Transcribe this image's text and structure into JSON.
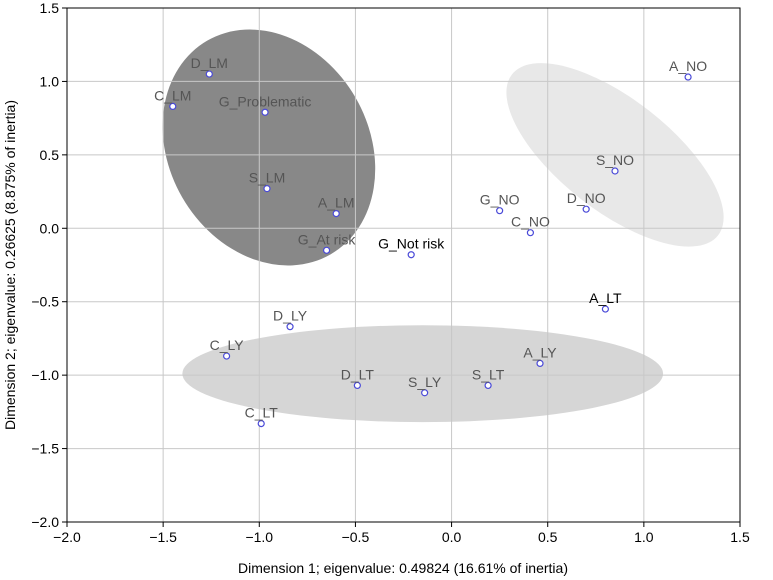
{
  "chart_data": {
    "type": "scatter",
    "xlabel": "Dimension 1; eigenvalue: 0.49824 (16.61% of inertia)",
    "ylabel": "Dimension 2; eigenvalue: 0.26625 (8.875% of inertia)",
    "xlim": [
      -2.0,
      1.5
    ],
    "ylim": [
      -2.0,
      1.5
    ],
    "x_ticks": [
      "−2.0",
      "−1.5",
      "−1.0",
      "−0.5",
      "0.0",
      "0.5",
      "1.0",
      "1.5"
    ],
    "y_ticks": [
      "1.5",
      "1.0",
      "0.5",
      "0.0",
      "−0.5",
      "−1.0",
      "−1.5",
      "−2.0"
    ],
    "x_tick_values": [
      -2.0,
      -1.5,
      -1.0,
      -0.5,
      0.0,
      0.5,
      1.0,
      1.5
    ],
    "y_tick_values": [
      1.5,
      1.0,
      0.5,
      0.0,
      -0.5,
      -1.0,
      -1.5,
      -2.0
    ],
    "grid": true,
    "colors": {
      "point": "#4a4ad8",
      "label_gray": "#555555",
      "label_dark": "#000000",
      "ellipse_dark": "#888888",
      "ellipse_mid": "#d6d6d6",
      "ellipse_light": "#e8e8e8"
    },
    "groups": [
      {
        "cx": -0.95,
        "cy": 0.55,
        "rx": 0.52,
        "ry": 0.84,
        "rotation_deg": -30,
        "fill": "#888888"
      },
      {
        "cx": 0.85,
        "cy": 0.5,
        "rx": 0.68,
        "ry": 0.38,
        "rotation_deg": 38,
        "fill": "#e8e8e8"
      },
      {
        "cx": -0.15,
        "cy": -0.99,
        "rx": 1.25,
        "ry": 0.33,
        "rotation_deg": 0,
        "fill": "#d6d6d6"
      }
    ],
    "points": [
      {
        "label": "D_LM",
        "x": -1.26,
        "y": 1.05,
        "dark": false
      },
      {
        "label": "C_LM",
        "x": -1.45,
        "y": 0.83,
        "dark": false
      },
      {
        "label": "G_Problematic",
        "x": -0.97,
        "y": 0.79,
        "dark": false
      },
      {
        "label": "S_LM",
        "x": -0.96,
        "y": 0.27,
        "dark": false
      },
      {
        "label": "A_LM",
        "x": -0.6,
        "y": 0.1,
        "dark": false
      },
      {
        "label": "G_At risk",
        "x": -0.65,
        "y": -0.15,
        "dark": false
      },
      {
        "label": "G_Not risk",
        "x": -0.21,
        "y": -0.18,
        "dark": true
      },
      {
        "label": "A_NO",
        "x": 1.23,
        "y": 1.03,
        "dark": false
      },
      {
        "label": "S_NO",
        "x": 0.85,
        "y": 0.39,
        "dark": false
      },
      {
        "label": "D_NO",
        "x": 0.7,
        "y": 0.13,
        "dark": false
      },
      {
        "label": "G_NO",
        "x": 0.25,
        "y": 0.12,
        "dark": false
      },
      {
        "label": "C_NO",
        "x": 0.41,
        "y": -0.03,
        "dark": false
      },
      {
        "label": "A_LT",
        "x": 0.8,
        "y": -0.55,
        "dark": true
      },
      {
        "label": "D_LY",
        "x": -0.84,
        "y": -0.67,
        "dark": false
      },
      {
        "label": "C_LY",
        "x": -1.17,
        "y": -0.87,
        "dark": false
      },
      {
        "label": "A_LY",
        "x": 0.46,
        "y": -0.92,
        "dark": false
      },
      {
        "label": "D_LT",
        "x": -0.49,
        "y": -1.07,
        "dark": false
      },
      {
        "label": "S_LT",
        "x": 0.19,
        "y": -1.07,
        "dark": false
      },
      {
        "label": "S_LY",
        "x": -0.14,
        "y": -1.12,
        "dark": false
      },
      {
        "label": "C_LT",
        "x": -0.99,
        "y": -1.33,
        "dark": false
      }
    ]
  }
}
